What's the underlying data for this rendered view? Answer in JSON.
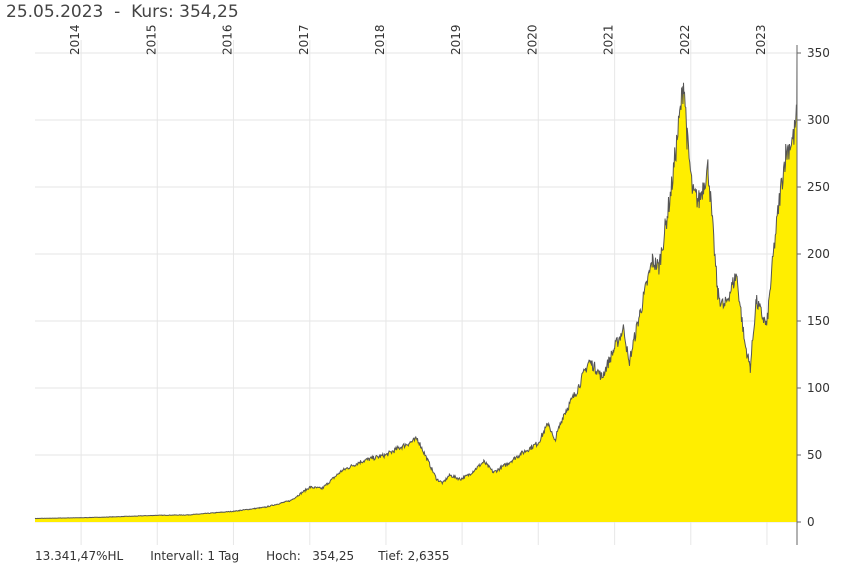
{
  "header": {
    "date": "25.05.2023",
    "separator": "-",
    "price_label": "Kurs:",
    "price_value": "354,25"
  },
  "footer": {
    "change": "13.341,47%HL",
    "interval_label": "Intervall:",
    "interval_value": "1 Tag",
    "high_label": "Hoch:",
    "high_value": "354,25",
    "low_label": "Tief:",
    "low_value": "2,6355"
  },
  "colors": {
    "fill": "#ffee00",
    "line": "#555555",
    "grid": "#e6e6e6"
  },
  "chart_data": {
    "type": "area",
    "title": "",
    "xlabel": "",
    "ylabel": "",
    "ylim": [
      0,
      350
    ],
    "y_ticks": [
      0,
      50,
      100,
      150,
      200,
      250,
      300,
      350
    ],
    "x_tick_labels": [
      "2014",
      "2015",
      "2016",
      "2017",
      "2018",
      "2019",
      "2020",
      "2021",
      "2022",
      "2023"
    ],
    "x_tick_years": [
      2014,
      2015,
      2016,
      2017,
      2018,
      2019,
      2020,
      2021,
      2022,
      2023
    ],
    "xlim": [
      "2013-05-25",
      "2023-05-25"
    ],
    "grid": true,
    "series": [
      {
        "x": [
          "2013-05-25",
          "2013-09-01",
          "2014-01-01",
          "2014-06-01",
          "2015-01-01",
          "2015-06-01",
          "2016-01-01",
          "2016-06-01",
          "2016-10-01",
          "2017-01-01",
          "2017-03-01",
          "2017-06-01",
          "2017-09-01",
          "2017-10-15",
          "2018-01-01",
          "2018-03-01",
          "2018-06-01",
          "2018-09-01",
          "2018-10-01",
          "2018-11-01",
          "2018-12-24",
          "2019-02-01",
          "2019-04-15",
          "2019-06-01",
          "2019-08-01",
          "2019-10-01",
          "2019-12-31",
          "2020-02-20",
          "2020-03-18",
          "2020-05-01",
          "2020-07-01",
          "2020-08-31",
          "2020-10-01",
          "2020-11-01",
          "2021-01-01",
          "2021-02-15",
          "2021-03-10",
          "2021-05-01",
          "2021-07-01",
          "2021-08-01",
          "2021-09-01",
          "2021-10-01",
          "2021-11-29",
          "2021-12-15",
          "2022-01-10",
          "2022-02-10",
          "2022-03-25",
          "2022-05-10",
          "2022-06-10",
          "2022-08-08",
          "2022-09-15",
          "2022-10-13",
          "2022-11-10",
          "2022-12-31",
          "2023-02-01",
          "2023-03-01",
          "2023-04-01",
          "2023-05-10",
          "2023-05-24",
          "2023-05-25"
        ],
        "values": [
          2.6,
          2.9,
          3.2,
          3.8,
          5.0,
          5.3,
          8.0,
          11.0,
          16.0,
          26.0,
          25.0,
          38.0,
          45.0,
          47.0,
          50.0,
          55.0,
          62.0,
          32.0,
          29.0,
          35.0,
          32.0,
          35.0,
          45.0,
          37.0,
          43.0,
          50.0,
          59.0,
          74.0,
          60.0,
          80.0,
          97.0,
          120.0,
          115.0,
          108.0,
          130.0,
          145.0,
          118.0,
          155.0,
          195.0,
          190.0,
          220.0,
          250.0,
          330.0,
          285.0,
          245.0,
          240.0,
          265.0,
          170.0,
          160.0,
          185.0,
          135.0,
          115.0,
          165.0,
          146.0,
          200.0,
          240.0,
          275.0,
          288.0,
          305.0,
          354.25
        ]
      }
    ]
  }
}
